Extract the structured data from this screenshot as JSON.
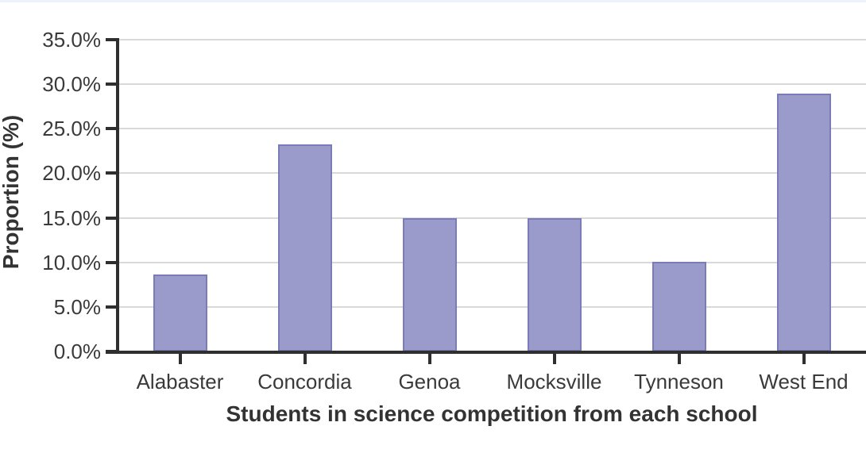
{
  "chart_data": {
    "type": "bar",
    "title": "",
    "xlabel": "Students in science competition from each school",
    "ylabel": "Proportion (%)",
    "categories": [
      "Alabaster",
      "Concordia",
      "Genoa",
      "Mocksville",
      "Tynneson",
      "West End"
    ],
    "values": [
      8.6,
      23.2,
      15.0,
      15.0,
      10.1,
      28.9
    ],
    "ylim": [
      0,
      35
    ],
    "ytick_step": 5,
    "ytick_labels": [
      "0.0%",
      "5.0%",
      "10.0%",
      "15.0%",
      "20.0%",
      "25.0%",
      "30.0%",
      "35.0%"
    ],
    "grid": "horizontal",
    "legend": "none",
    "colors": {
      "bar_fill": "#9a9bcb",
      "bar_border": "#7a7cba",
      "gridline": "#d9d9d9",
      "axis": "#2f2f2f",
      "tick_text": "#3a3a3a",
      "title_text": "#333333",
      "top_strip": "#edf3fa",
      "background": "#ffffff"
    }
  }
}
